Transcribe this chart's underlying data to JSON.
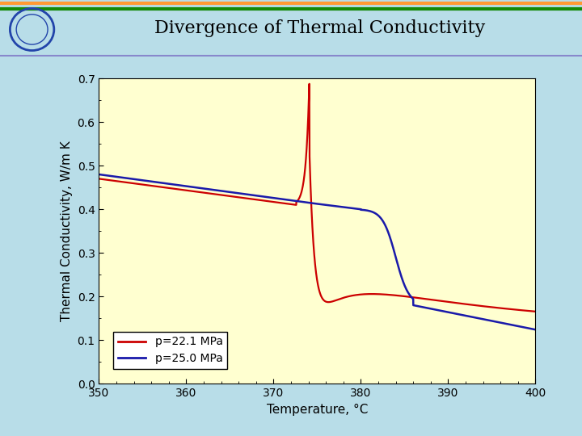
{
  "title": "Divergence of Thermal Conductivity",
  "xlabel": "Temperature, °C",
  "ylabel": "Thermal Conductivity, W/m K",
  "xlim": [
    350,
    400
  ],
  "ylim": [
    0.0,
    0.7
  ],
  "xticks": [
    350,
    360,
    370,
    380,
    390,
    400
  ],
  "yticks": [
    0.0,
    0.1,
    0.2,
    0.3,
    0.4,
    0.5,
    0.6,
    0.7
  ],
  "legend": [
    "p=22.1 MPa",
    "p=25.0 MPa"
  ],
  "line_colors": [
    "#cc0000",
    "#1a1aaa"
  ],
  "plot_bg": "#ffffd0",
  "slide_bg": "#b8dde8",
  "title_bar_bg": "#ffffff",
  "title_color": "#000000",
  "title_fontsize": 16,
  "axis_fontsize": 11,
  "tick_fontsize": 10
}
